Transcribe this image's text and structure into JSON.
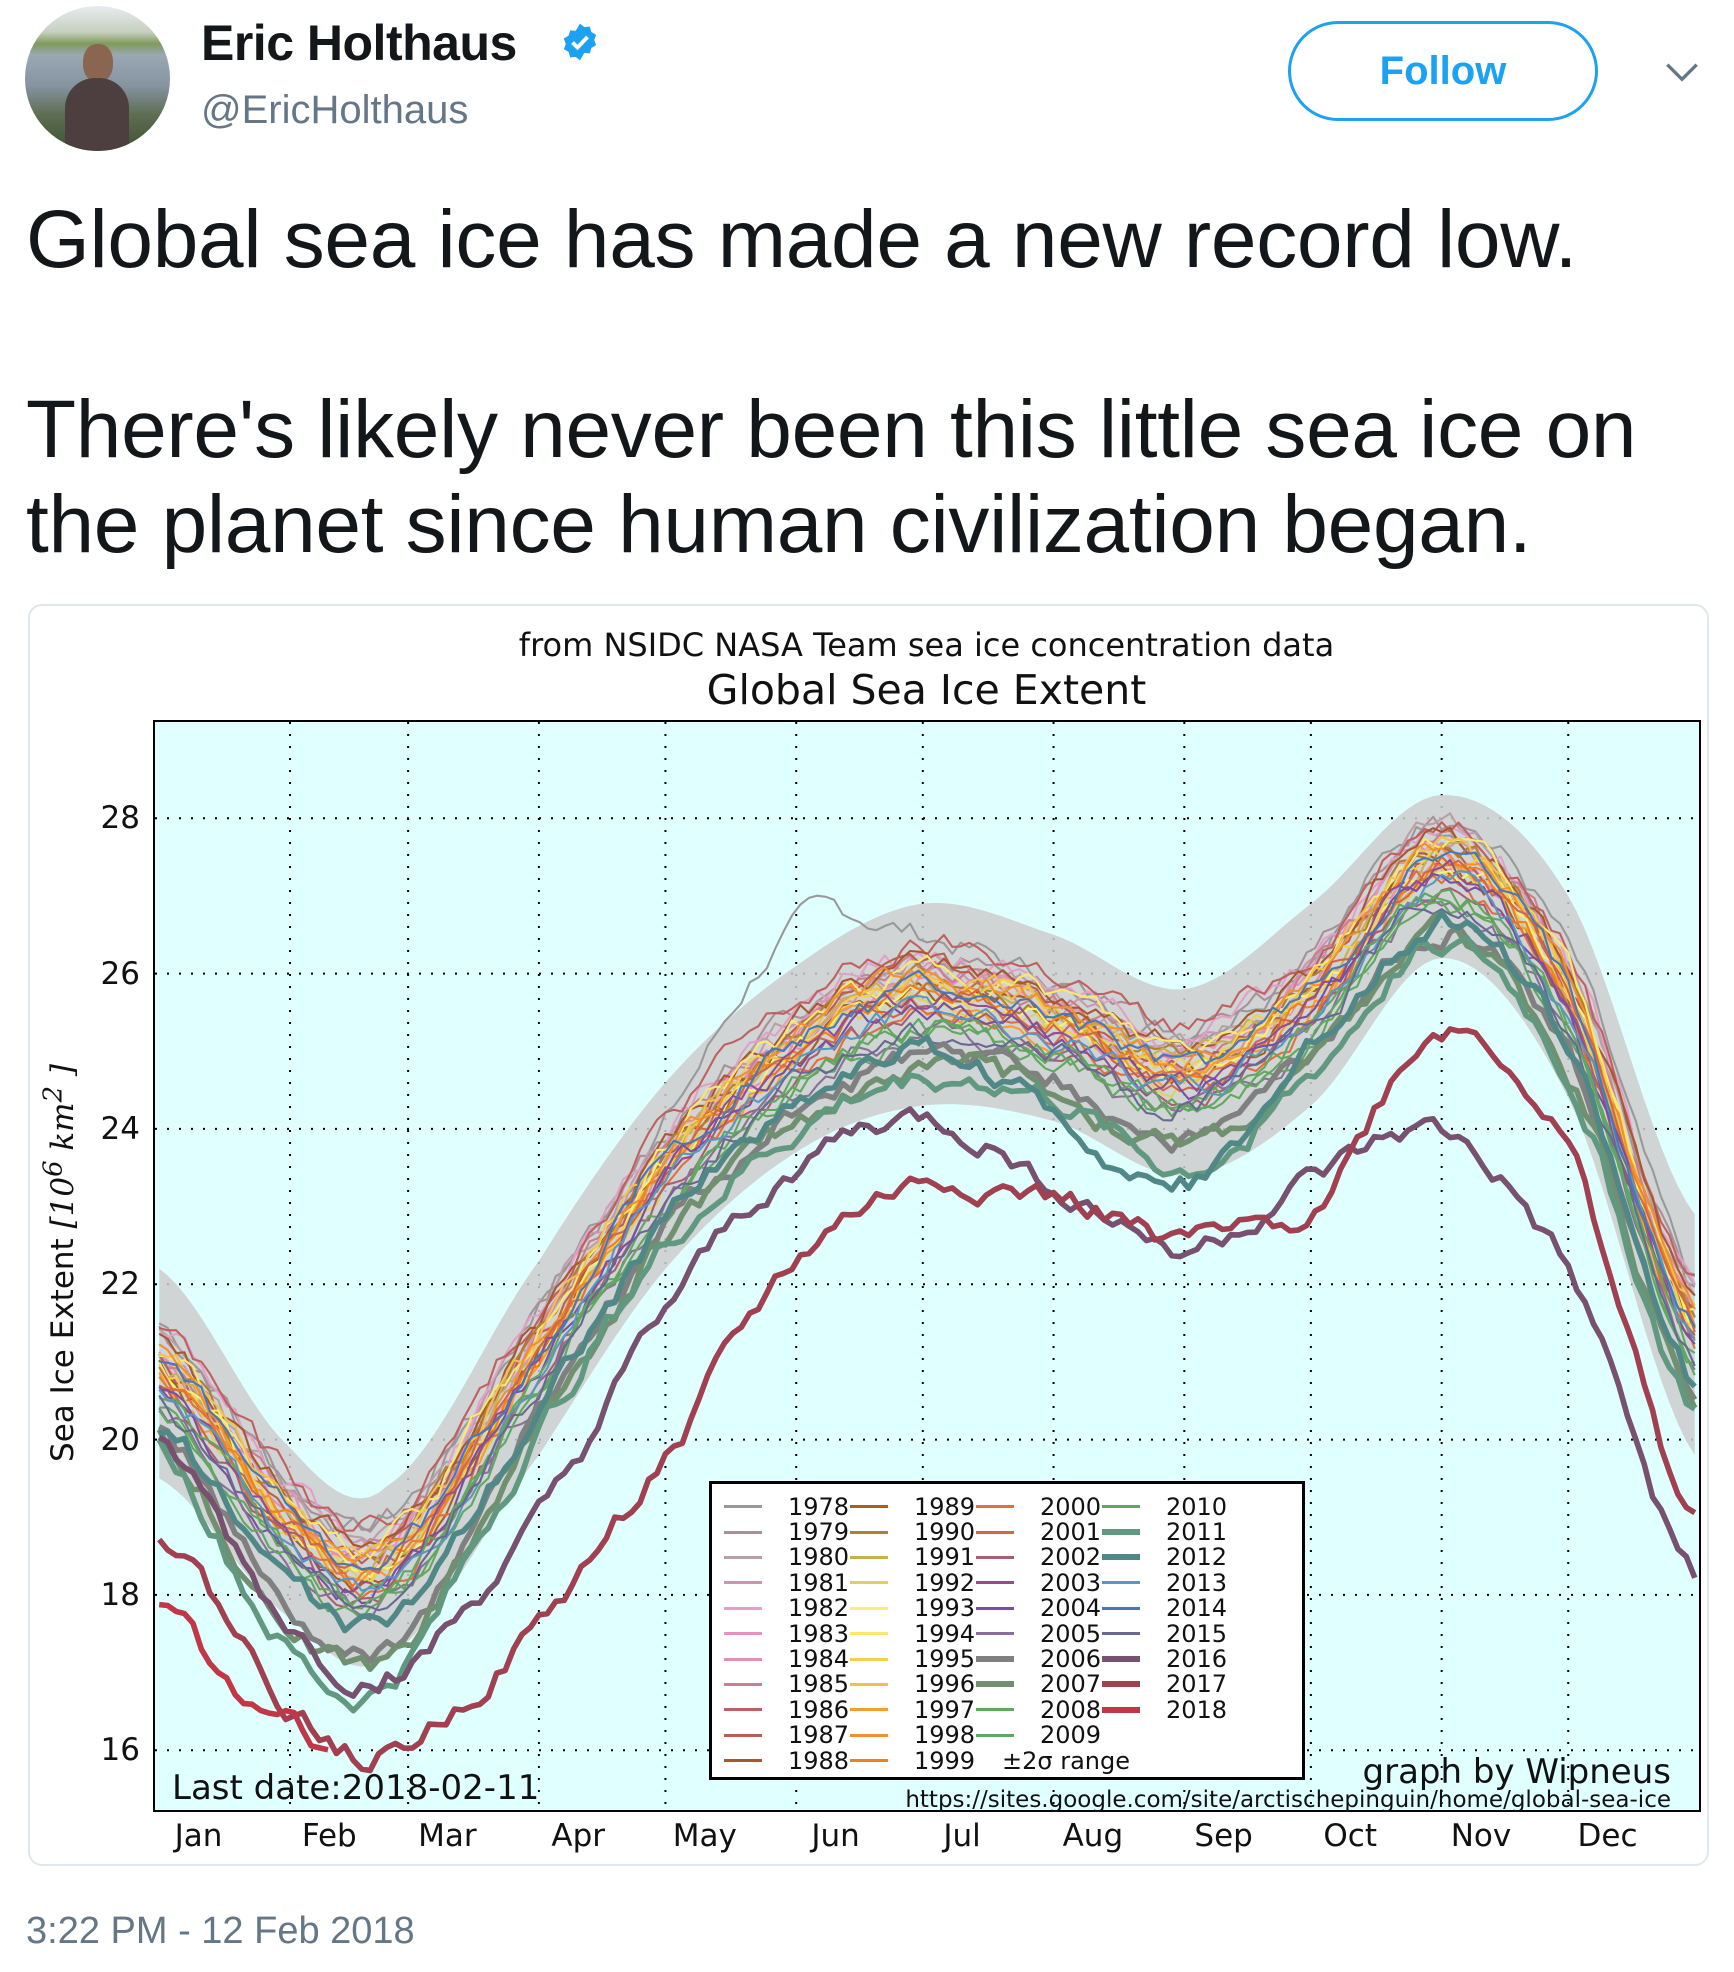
{
  "author": {
    "name": "Eric Holthaus",
    "handle": "@EricHolthaus",
    "verified": true,
    "avatar_icon": "profile-photo"
  },
  "follow_label": "Follow",
  "menu_icon": "chevron-down-icon",
  "tweet_text": "Global sea ice has made a new record low.\n\nThere's likely never been this little sea ice on the planet since human civilization began.",
  "timestamp": "3:22 PM - 12 Feb 2018",
  "colors": {
    "accent": "#1da1f2",
    "plot_bg": "#e0ffff",
    "band": "#cccccc"
  },
  "chart_data": {
    "type": "line",
    "subtitle": "from NSIDC NASA Team sea ice concentration data",
    "title": "Global Sea Ice Extent",
    "ylabel": "Sea Ice Extent [10⁶ km²]",
    "ylabel_parts": {
      "text": "Sea Ice Extent ",
      "unit": "[10",
      "exp": "6",
      "unit2": " km",
      "exp2": "2",
      "close": " ]"
    },
    "ylim": [
      15.23,
      29.24
    ],
    "yticks": [
      16,
      18,
      20,
      22,
      24,
      26,
      28
    ],
    "xlim_day_of_year": [
      0,
      366
    ],
    "month_start_days": [
      32,
      60,
      91,
      121,
      152,
      182,
      213,
      244,
      274,
      305,
      335
    ],
    "xtick_labels": [
      "Jan",
      "Feb",
      "Mar",
      "Apr",
      "May",
      "Jun",
      "Jul",
      "Aug",
      "Sep",
      "Oct",
      "Nov",
      "Dec"
    ],
    "xtick_days": [
      7,
      38,
      66,
      97,
      127,
      158,
      188,
      219,
      250,
      280,
      311,
      341
    ],
    "grid": true,
    "legend_placement": "lower-center",
    "annotations": {
      "last_date": "Last date:2018-02-11",
      "credit": "graph by Wipneus",
      "url": "https://sites.google.com/site/arctischepinguin/home/global-sea-ice"
    },
    "x_days": [
      1,
      32,
      55,
      91,
      121,
      152,
      182,
      213,
      244,
      274,
      305,
      335,
      365
    ],
    "band": {
      "name": "±2σ range",
      "color": "#cccccc",
      "upper": [
        22.2,
        19.9,
        19.4,
        22.3,
        24.6,
        26.1,
        26.9,
        26.5,
        25.8,
        26.9,
        28.3,
        27.0,
        22.9
      ],
      "lower": [
        19.5,
        17.7,
        17.2,
        19.8,
        22.2,
        23.7,
        24.3,
        24.1,
        23.4,
        24.3,
        26.2,
        24.4,
        19.8
      ]
    },
    "series": [
      {
        "name": "1978",
        "color": "#999999",
        "lw": 1.5,
        "values": [
          21.5,
          19.5,
          19.0,
          21.7,
          24.1,
          26.6,
          26.5,
          25.9,
          25.3,
          26.3,
          28.0,
          26.3,
          22.0
        ]
      },
      {
        "name": "1979",
        "color": "#a89098",
        "lw": 1.5,
        "values": [
          21.4,
          19.4,
          18.9,
          21.6,
          24.0,
          25.5,
          26.2,
          25.9,
          25.2,
          26.2,
          27.9,
          26.2,
          21.9
        ]
      },
      {
        "name": "1980",
        "color": "#b8a0a8",
        "lw": 1.5,
        "values": [
          21.3,
          19.3,
          18.8,
          21.5,
          23.9,
          25.4,
          26.1,
          25.8,
          25.1,
          26.1,
          27.8,
          26.1,
          21.8
        ]
      },
      {
        "name": "1981",
        "color": "#c898b0",
        "lw": 1.5,
        "values": [
          21.2,
          19.2,
          18.7,
          21.4,
          23.8,
          25.3,
          26.0,
          25.7,
          25.0,
          26.0,
          27.7,
          26.0,
          21.7
        ]
      },
      {
        "name": "1982",
        "color": "#e0a0c8",
        "lw": 1.5,
        "values": [
          21.4,
          19.4,
          18.9,
          21.6,
          24.0,
          25.5,
          26.2,
          25.9,
          25.2,
          26.2,
          27.9,
          26.2,
          21.9
        ]
      },
      {
        "name": "1983",
        "color": "#e890c0",
        "lw": 1.5,
        "values": [
          21.1,
          19.1,
          18.6,
          21.3,
          23.7,
          25.2,
          25.9,
          25.6,
          24.9,
          25.9,
          27.6,
          25.9,
          21.6
        ]
      },
      {
        "name": "1984",
        "color": "#e090b0",
        "lw": 1.5,
        "values": [
          21.0,
          19.0,
          18.5,
          21.2,
          23.6,
          25.1,
          25.8,
          25.5,
          24.8,
          25.8,
          27.5,
          25.8,
          21.5
        ]
      },
      {
        "name": "1985",
        "color": "#c88090",
        "lw": 1.5,
        "values": [
          21.2,
          19.2,
          18.7,
          21.4,
          23.8,
          25.3,
          26.0,
          25.7,
          25.0,
          26.0,
          27.7,
          26.0,
          21.7
        ]
      },
      {
        "name": "1986",
        "color": "#c06060",
        "lw": 1.5,
        "values": [
          21.5,
          19.5,
          19.0,
          21.7,
          24.1,
          25.6,
          26.3,
          26.0,
          25.3,
          26.3,
          28.0,
          26.3,
          22.0
        ]
      },
      {
        "name": "1987",
        "color": "#b86050",
        "lw": 1.5,
        "values": [
          21.1,
          19.1,
          18.6,
          21.3,
          23.7,
          25.2,
          25.9,
          25.6,
          24.9,
          25.9,
          27.6,
          25.9,
          21.6
        ]
      },
      {
        "name": "1988",
        "color": "#a85830",
        "lw": 1.5,
        "values": [
          21.3,
          19.3,
          18.8,
          21.5,
          23.9,
          25.4,
          26.1,
          25.8,
          25.1,
          26.1,
          27.8,
          26.1,
          21.8
        ]
      },
      {
        "name": "1989",
        "color": "#a86020",
        "lw": 1.5,
        "values": [
          20.9,
          18.9,
          18.4,
          21.1,
          23.5,
          25.0,
          25.7,
          25.4,
          24.7,
          25.7,
          27.4,
          25.7,
          21.4
        ]
      },
      {
        "name": "1990",
        "color": "#b08030",
        "lw": 1.5,
        "values": [
          21.1,
          19.1,
          18.6,
          21.3,
          23.7,
          25.2,
          25.9,
          25.6,
          24.9,
          25.9,
          27.6,
          25.9,
          21.6
        ]
      },
      {
        "name": "1991",
        "color": "#c8b050",
        "lw": 1.5,
        "values": [
          21.0,
          19.0,
          18.5,
          21.2,
          23.6,
          25.1,
          25.8,
          25.5,
          24.8,
          25.8,
          27.5,
          25.8,
          21.5
        ]
      },
      {
        "name": "1992",
        "color": "#e0d060",
        "lw": 1.5,
        "values": [
          20.8,
          18.8,
          18.3,
          21.0,
          23.4,
          24.9,
          25.6,
          25.3,
          24.6,
          25.6,
          27.3,
          25.6,
          21.3
        ]
      },
      {
        "name": "1993",
        "color": "#f8f070",
        "lw": 1.5,
        "values": [
          20.9,
          18.9,
          18.4,
          21.1,
          23.5,
          25.0,
          25.7,
          25.4,
          24.7,
          25.7,
          27.4,
          25.7,
          21.4
        ]
      },
      {
        "name": "1994",
        "color": "#f8e870",
        "lw": 1.5,
        "values": [
          21.2,
          19.2,
          18.7,
          21.4,
          23.8,
          25.3,
          26.0,
          25.7,
          25.0,
          26.0,
          27.7,
          26.0,
          21.7
        ]
      },
      {
        "name": "1995",
        "color": "#f0d050",
        "lw": 1.5,
        "values": [
          21.0,
          19.0,
          18.5,
          21.2,
          23.6,
          25.1,
          25.8,
          25.5,
          24.8,
          25.8,
          27.5,
          25.8,
          21.5
        ]
      },
      {
        "name": "1996",
        "color": "#f0c050",
        "lw": 1.5,
        "values": [
          21.1,
          19.1,
          18.6,
          21.3,
          23.7,
          25.2,
          25.9,
          25.6,
          24.9,
          25.9,
          27.6,
          25.9,
          21.6
        ]
      },
      {
        "name": "1997",
        "color": "#f0a030",
        "lw": 1.5,
        "values": [
          20.8,
          18.8,
          18.3,
          21.0,
          23.4,
          24.9,
          25.6,
          25.3,
          24.6,
          25.6,
          27.3,
          25.6,
          21.3
        ]
      },
      {
        "name": "1998",
        "color": "#f09030",
        "lw": 1.5,
        "values": [
          21.1,
          19.1,
          18.6,
          21.3,
          23.7,
          25.2,
          25.9,
          25.6,
          24.9,
          25.9,
          27.6,
          25.9,
          21.6
        ]
      },
      {
        "name": "1999",
        "color": "#f08020",
        "lw": 1.5,
        "values": [
          20.9,
          18.9,
          18.4,
          21.1,
          23.5,
          25.0,
          25.7,
          25.4,
          24.7,
          25.7,
          27.4,
          25.7,
          21.4
        ]
      },
      {
        "name": "2000",
        "color": "#e07040",
        "lw": 1.5,
        "values": [
          20.7,
          18.7,
          18.2,
          20.9,
          23.3,
          24.8,
          25.5,
          25.2,
          24.5,
          25.5,
          27.2,
          25.5,
          21.2
        ]
      },
      {
        "name": "2001",
        "color": "#d06848",
        "lw": 1.5,
        "values": [
          20.9,
          18.9,
          18.4,
          21.1,
          23.5,
          25.0,
          25.7,
          25.4,
          24.7,
          25.7,
          27.4,
          25.7,
          21.4
        ]
      },
      {
        "name": "2002",
        "color": "#a86070",
        "lw": 1.5,
        "values": [
          20.6,
          18.6,
          18.1,
          20.8,
          23.2,
          24.7,
          25.4,
          25.1,
          24.4,
          25.4,
          27.1,
          25.4,
          21.1
        ]
      },
      {
        "name": "2003",
        "color": "#905090",
        "lw": 1.5,
        "values": [
          20.8,
          18.8,
          18.3,
          21.0,
          23.4,
          24.9,
          25.6,
          25.3,
          24.6,
          25.6,
          27.3,
          25.6,
          21.3
        ]
      },
      {
        "name": "2004",
        "color": "#7850a0",
        "lw": 1.5,
        "values": [
          20.7,
          18.7,
          18.2,
          20.9,
          23.3,
          24.8,
          25.5,
          25.2,
          24.5,
          25.5,
          27.2,
          25.5,
          21.2
        ]
      },
      {
        "name": "2005",
        "color": "#887098",
        "lw": 1.5,
        "values": [
          20.4,
          18.4,
          17.9,
          20.6,
          23.0,
          24.5,
          25.2,
          24.9,
          24.2,
          25.2,
          26.9,
          25.2,
          20.9
        ]
      },
      {
        "name": "2006",
        "color": "#808080",
        "lw": 4,
        "values": [
          20.1,
          17.8,
          17.3,
          20.3,
          22.7,
          24.2,
          24.9,
          24.6,
          23.9,
          24.9,
          26.6,
          24.9,
          20.6
        ]
      },
      {
        "name": "2007",
        "color": "#709070",
        "lw": 4,
        "values": [
          20.0,
          17.7,
          17.2,
          20.2,
          22.6,
          24.1,
          24.8,
          24.5,
          23.8,
          24.8,
          26.5,
          24.8,
          20.5
        ]
      },
      {
        "name": "2008",
        "color": "#60a860",
        "lw": 1.5,
        "values": [
          20.5,
          18.5,
          18.0,
          20.7,
          23.1,
          24.6,
          25.3,
          25.0,
          24.3,
          25.3,
          27.0,
          25.3,
          21.0
        ]
      },
      {
        "name": "2009",
        "color": "#60a860",
        "lw": 1.5,
        "values": [
          20.4,
          18.4,
          17.9,
          20.6,
          23.0,
          24.5,
          25.2,
          24.9,
          24.2,
          25.2,
          26.9,
          25.2,
          20.9
        ]
      },
      {
        "name": "2010",
        "color": "#60a860",
        "lw": 1.5,
        "values": [
          20.5,
          18.5,
          18.0,
          20.7,
          23.1,
          24.6,
          25.3,
          25.0,
          24.3,
          25.3,
          27.0,
          25.3,
          21.0
        ]
      },
      {
        "name": "2011",
        "color": "#609880",
        "lw": 4,
        "values": [
          19.9,
          17.3,
          16.9,
          20.1,
          22.5,
          24.0,
          24.7,
          24.4,
          23.5,
          24.7,
          26.4,
          24.7,
          20.4
        ]
      },
      {
        "name": "2012",
        "color": "#508888",
        "lw": 4,
        "values": [
          20.2,
          18.2,
          17.7,
          20.4,
          22.8,
          24.3,
          25.0,
          24.2,
          23.3,
          25.0,
          26.7,
          25.0,
          20.7
        ]
      },
      {
        "name": "2013",
        "color": "#5898c0",
        "lw": 1.5,
        "values": [
          20.7,
          18.7,
          18.2,
          20.9,
          23.3,
          24.8,
          25.5,
          25.2,
          24.5,
          25.5,
          27.2,
          25.5,
          21.2
        ]
      },
      {
        "name": "2014",
        "color": "#4878b8",
        "lw": 1.5,
        "values": [
          21.0,
          19.0,
          18.5,
          21.2,
          23.6,
          25.1,
          25.8,
          25.5,
          24.8,
          25.8,
          27.5,
          25.8,
          21.5
        ]
      },
      {
        "name": "2015",
        "color": "#686890",
        "lw": 1.5,
        "values": [
          20.5,
          18.5,
          18.0,
          20.7,
          23.1,
          24.6,
          25.3,
          25.0,
          24.3,
          25.3,
          27.0,
          25.3,
          21.0
        ]
      },
      {
        "name": "2016",
        "color": "#785070",
        "lw": 4,
        "values": [
          19.9,
          17.6,
          17.0,
          18.9,
          21.6,
          23.5,
          24.1,
          23.3,
          22.5,
          23.3,
          23.9,
          22.1,
          18.3
        ]
      },
      {
        "name": "2017",
        "color": "#a04050",
        "lw": 4,
        "values": [
          18.8,
          16.6,
          16.0,
          17.6,
          19.8,
          22.3,
          23.3,
          23.1,
          22.6,
          23.0,
          25.3,
          23.7,
          18.9
        ]
      },
      {
        "name": "2018",
        "color": "#c03848",
        "lw": 4,
        "x_days": [
          1,
          15,
          32,
          42
        ],
        "values": [
          17.9,
          17.0,
          16.3,
          16.1
        ]
      }
    ]
  }
}
